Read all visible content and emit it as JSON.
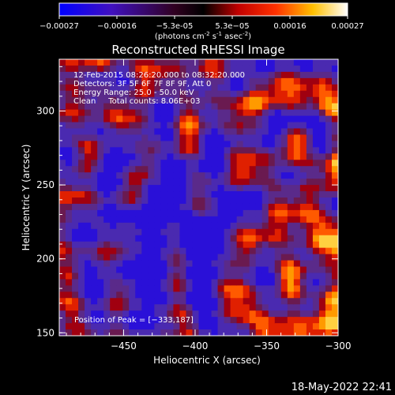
{
  "chart_data": {
    "type": "heatmap",
    "title": "Reconstructed RHESSI Image",
    "colorbar": {
      "ticks": [
        "-0.00027",
        "-0.00016",
        "-5.3e-05",
        "5.3e-05",
        "0.00016",
        "0.00027"
      ],
      "range": [
        -0.00027,
        0.00027
      ],
      "units_prefix": "(photons cm",
      "units_exp1": "-2",
      "units_mid": " s",
      "units_exp2": "-1",
      "units_mid2": " asec",
      "units_exp3": "-2",
      "units_suffix": ")"
    },
    "xlabel": "Heliocentric X (arcsec)",
    "ylabel": "Heliocentric Y (arcsec)",
    "xlim": [
      -495,
      -300
    ],
    "ylim": [
      148,
      335
    ],
    "xticks": [
      {
        "value": -450,
        "label": "−450"
      },
      {
        "value": -400,
        "label": "−400"
      },
      {
        "value": -350,
        "label": "−350"
      },
      {
        "value": -300,
        "label": "−300"
      }
    ],
    "yticks": [
      {
        "value": 150,
        "label": "150"
      },
      {
        "value": 200,
        "label": "200"
      },
      {
        "value": 250,
        "label": "250"
      },
      {
        "value": 300,
        "label": "300"
      }
    ],
    "peak": [
      -333,
      187
    ],
    "annotations": [
      "12-Feb-2015 08:26:20.000 to 08:32:20.000",
      "Detectors: 3F 5F 6F 7F 8F 9F, Att 0",
      "Energy Range: 25.0 - 50.0 keV",
      "Clean     Total counts: 8.06E+03"
    ],
    "peak_label": "Position of Peak = [−333,187]",
    "colors": {
      "low": "#0000ff",
      "mid": "#000000",
      "high": "#ff3000",
      "top": "#ffffff"
    }
  },
  "footer": {
    "timestamp": "18-May-2022 22:41"
  }
}
